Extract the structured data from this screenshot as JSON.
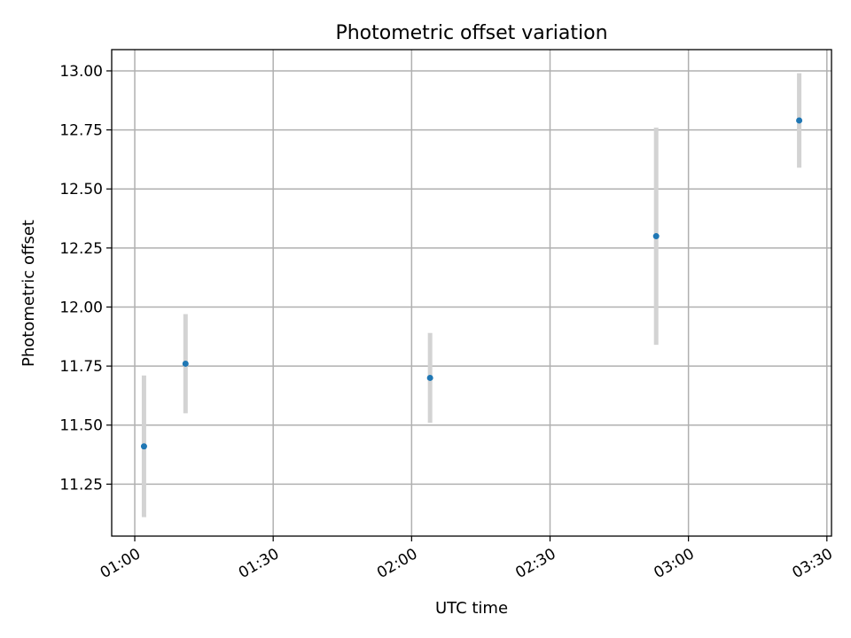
{
  "chart_data": {
    "type": "scatter",
    "title": "Photometric offset variation",
    "xlabel": "UTC time",
    "ylabel": "Photometric offset",
    "x_axis": "time",
    "xlim": [
      "00:55",
      "03:31"
    ],
    "ylim": [
      11.03,
      13.09
    ],
    "x_ticks": [
      "01:00",
      "01:30",
      "02:00",
      "02:30",
      "03:00",
      "03:30"
    ],
    "y_ticks": [
      "11.25",
      "11.50",
      "11.75",
      "12.00",
      "12.25",
      "12.50",
      "12.75",
      "13.00"
    ],
    "grid": true,
    "series": [
      {
        "marker_color": "#1f77b4",
        "errorbar_color": "#d3d3d3",
        "points": [
          {
            "x": "01:02",
            "y": 11.41,
            "err": 0.3
          },
          {
            "x": "01:11",
            "y": 11.76,
            "err": 0.21
          },
          {
            "x": "02:04",
            "y": 11.7,
            "err": 0.19
          },
          {
            "x": "02:53",
            "y": 12.3,
            "err": 0.46
          },
          {
            "x": "03:24",
            "y": 12.79,
            "err": 0.2
          }
        ]
      }
    ]
  }
}
